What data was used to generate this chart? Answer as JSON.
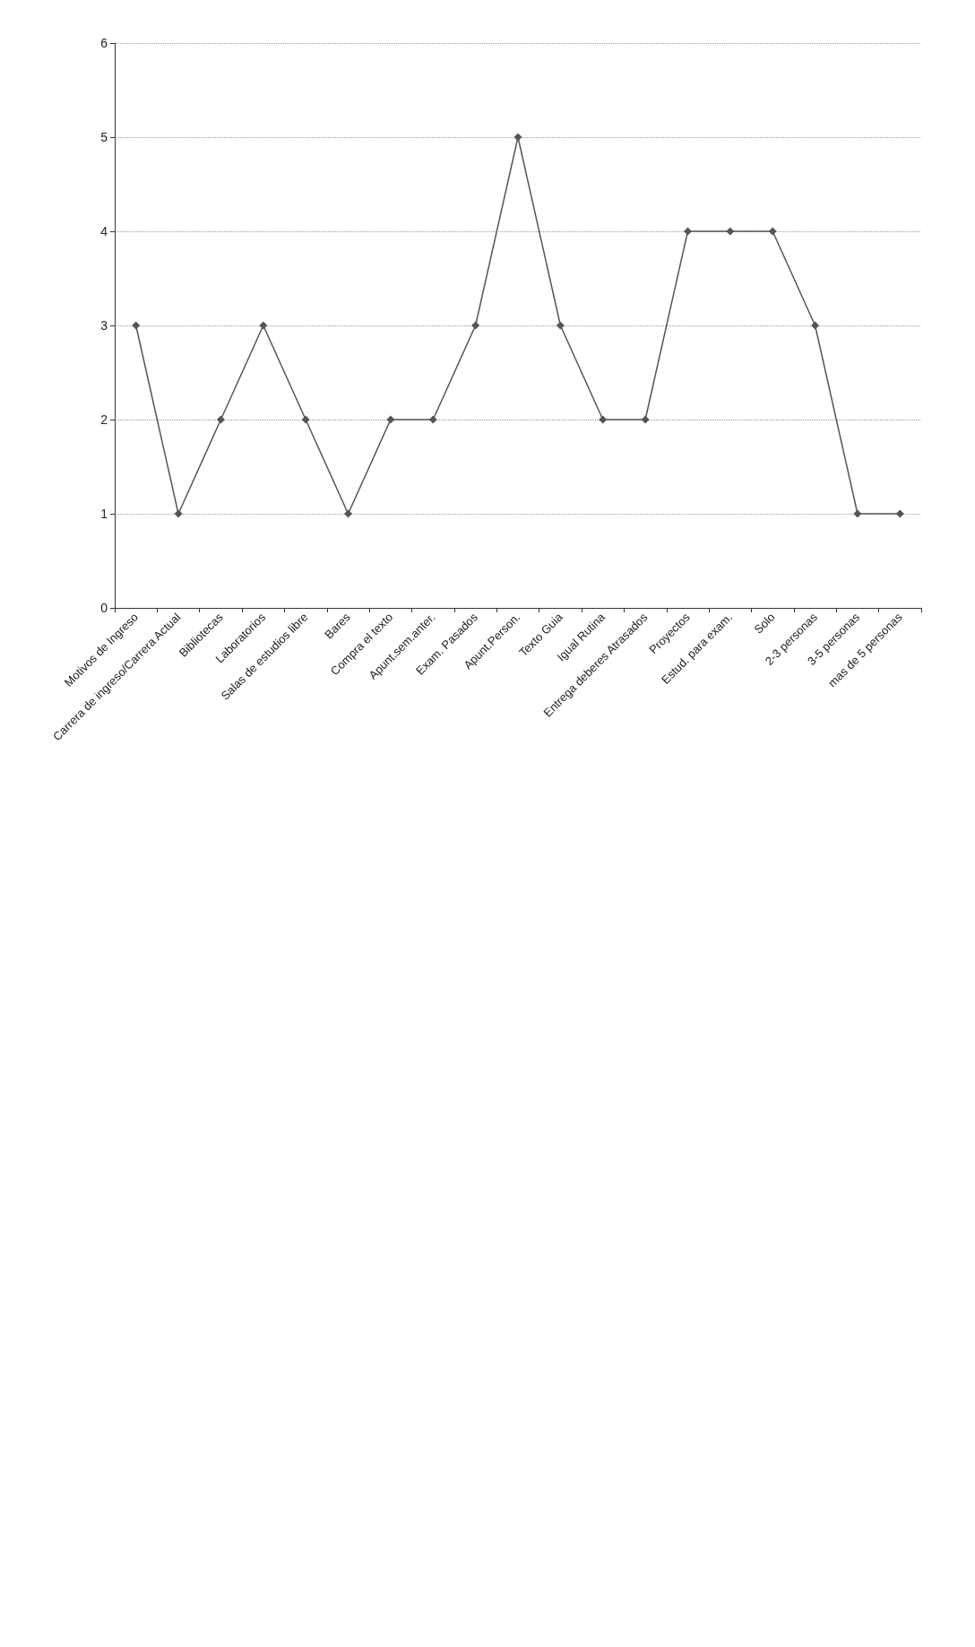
{
  "chart_data": {
    "type": "line",
    "categories": [
      "Motivos de Ingreso",
      "Carrera de ingreso/Carrera Actual",
      "Bibliotecas",
      "Laboratorios",
      "Salas de estudios libre",
      "Bares",
      "Compra el texto",
      "Apunt.sem.anter.",
      "Exam. Pasados",
      "Apunt.Person.",
      "Texto Guia",
      "Igual Rutina",
      "Entrega deberes Atrasados",
      "Proyectos",
      "Estud. para exam.",
      "Solo",
      "2-3 personas",
      "3-5 personas",
      "mas de 5 personas"
    ],
    "series": [
      {
        "color": "#555555",
        "values": [
          3,
          1,
          2,
          3,
          2,
          1,
          2,
          2,
          3,
          5,
          3,
          2,
          2,
          4,
          4,
          4,
          3,
          1,
          1
        ]
      }
    ],
    "ylim": [
      0,
      6
    ],
    "yticks": [
      0,
      1,
      2,
      3,
      4,
      5,
      6
    ],
    "grid": "y",
    "marker": "diamond",
    "line_style": "solid"
  }
}
